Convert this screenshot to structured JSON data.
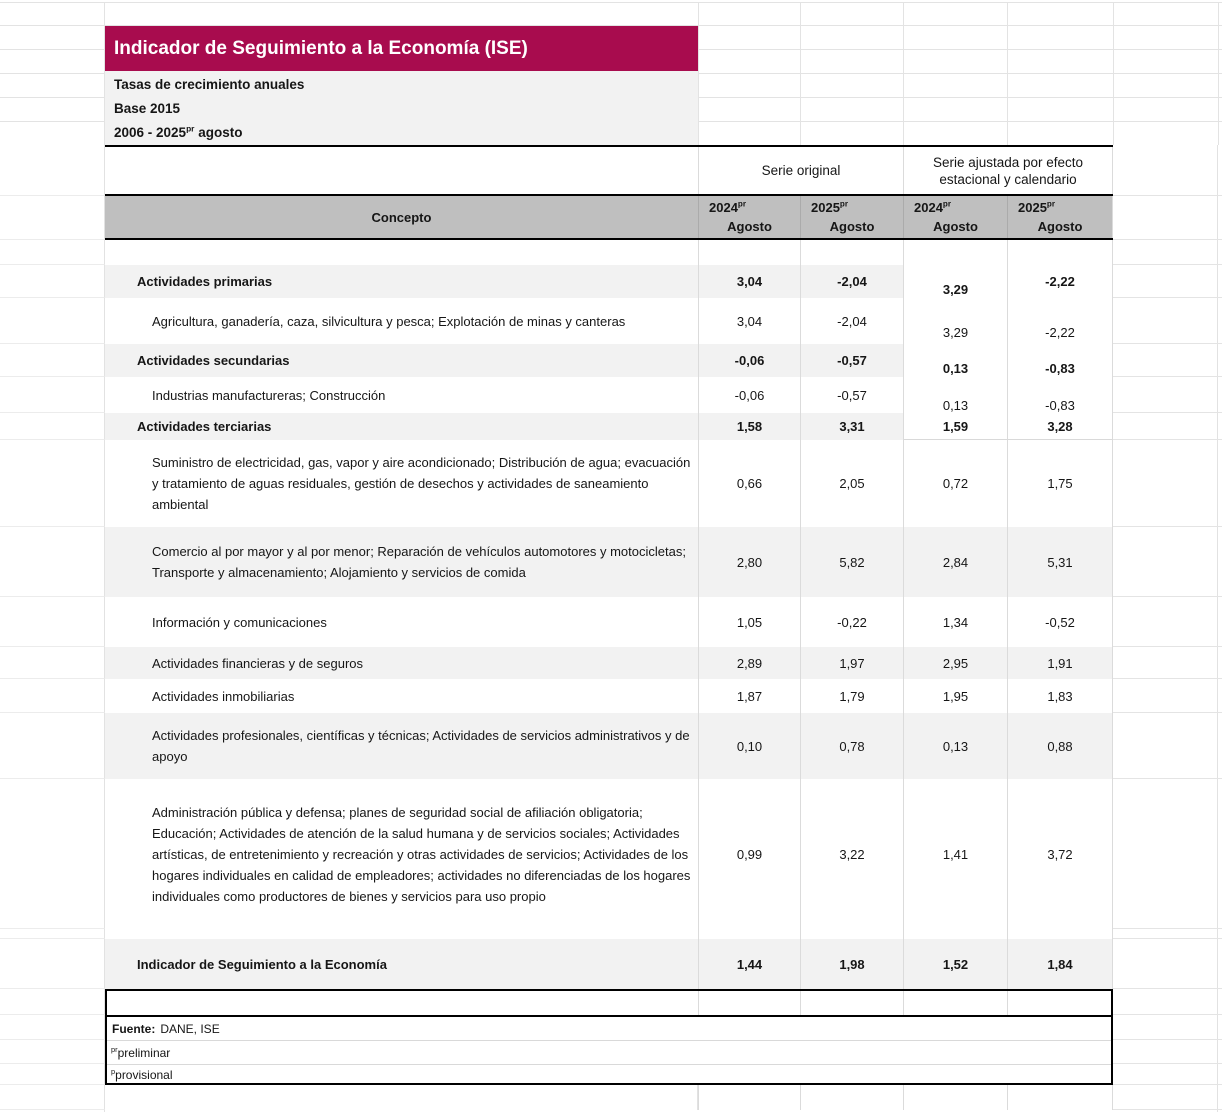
{
  "sheet": {
    "title": "Indicador de Seguimiento a la Economía (ISE)",
    "subtitle_lines": [
      "Tasas de crecimiento anuales",
      "Base 2015"
    ],
    "period": {
      "text": "2006 - 2025",
      "sup": "pr",
      "suffix": " agosto"
    }
  },
  "table": {
    "concept_header": "Concepto",
    "group_headers": [
      "Serie original",
      "Serie ajustada por efecto estacional y calendario"
    ],
    "column_headers": [
      {
        "year": "2024",
        "sup": "pr",
        "month": "Agosto"
      },
      {
        "year": "2025",
        "sup": "pr",
        "month": "Agosto"
      },
      {
        "year": "2024",
        "sup": "pr",
        "month": "Agosto"
      },
      {
        "year": "2025",
        "sup": "pr",
        "month": "Agosto"
      }
    ],
    "rows": [
      {
        "type": "category",
        "label": "Actividades primarias",
        "values": [
          "3,04",
          "-2,04",
          "3,29",
          "-2,22"
        ]
      },
      {
        "type": "item",
        "label": "Agricultura, ganadería, caza, silvicultura y pesca; Explotación de minas y canteras",
        "values": [
          "3,04",
          "-2,04",
          "3,29",
          "-2,22"
        ]
      },
      {
        "type": "category",
        "label": "Actividades secundarias",
        "values": [
          "-0,06",
          "-0,57",
          "0,13",
          "-0,83"
        ]
      },
      {
        "type": "item",
        "label": "Industrias manufactureras; Construcción",
        "values": [
          "-0,06",
          "-0,57",
          "0,13",
          "-0,83"
        ]
      },
      {
        "type": "category",
        "label": "Actividades terciarias",
        "values": [
          "1,58",
          "3,31",
          "1,59",
          "3,28"
        ]
      },
      {
        "type": "item",
        "label": "Suministro de electricidad, gas, vapor y aire acondicionado; Distribución de agua; evacuación y tratamiento de aguas residuales, gestión de desechos y actividades de saneamiento ambiental",
        "values": [
          "0,66",
          "2,05",
          "0,72",
          "1,75"
        ]
      },
      {
        "type": "item",
        "label": "Comercio al por mayor y al por menor; Reparación de vehículos automotores y motocicletas; Transporte y almacenamiento; Alojamiento y servicios de comida",
        "values": [
          "2,80",
          "5,82",
          "2,84",
          "5,31"
        ]
      },
      {
        "type": "item",
        "label": "Información y comunicaciones",
        "values": [
          "1,05",
          "-0,22",
          "1,34",
          "-0,52"
        ]
      },
      {
        "type": "item",
        "label": "Actividades financieras y de seguros",
        "values": [
          "2,89",
          "1,97",
          "2,95",
          "1,91"
        ]
      },
      {
        "type": "item",
        "label": "Actividades inmobiliarias",
        "values": [
          "1,87",
          "1,79",
          "1,95",
          "1,83"
        ]
      },
      {
        "type": "item",
        "label": "Actividades profesionales, científicas y técnicas; Actividades de servicios administrativos y de apoyo",
        "values": [
          "0,10",
          "0,78",
          "0,13",
          "0,88"
        ]
      },
      {
        "type": "item",
        "label": "Administración pública y defensa; planes de seguridad social de afiliación obligatoria; Educación; Actividades de atención de la salud humana y de servicios sociales; Actividades artísticas, de entretenimiento y recreación y otras actividades de servicios; Actividades de los hogares individuales en calidad de empleadores; actividades no diferenciadas de los hogares individuales como productores de bienes y servicios para uso propio",
        "values": [
          "0,99",
          "3,22",
          "1,41",
          "3,72"
        ]
      },
      {
        "type": "total",
        "label": "Indicador de Seguimiento a la Economía",
        "values": [
          "1,44",
          "1,98",
          "1,52",
          "1,84"
        ]
      }
    ]
  },
  "footer": {
    "source_label": "Fuente:",
    "source_value": "DANE, ISE",
    "notes": [
      {
        "sup": "pr",
        "text": "preliminar"
      },
      {
        "sup": "p",
        "text": "provisional"
      }
    ]
  },
  "colors": {
    "accent": "#A80C4E",
    "header_band": "#BFBFBF",
    "stripe": "#F2F2F2"
  }
}
